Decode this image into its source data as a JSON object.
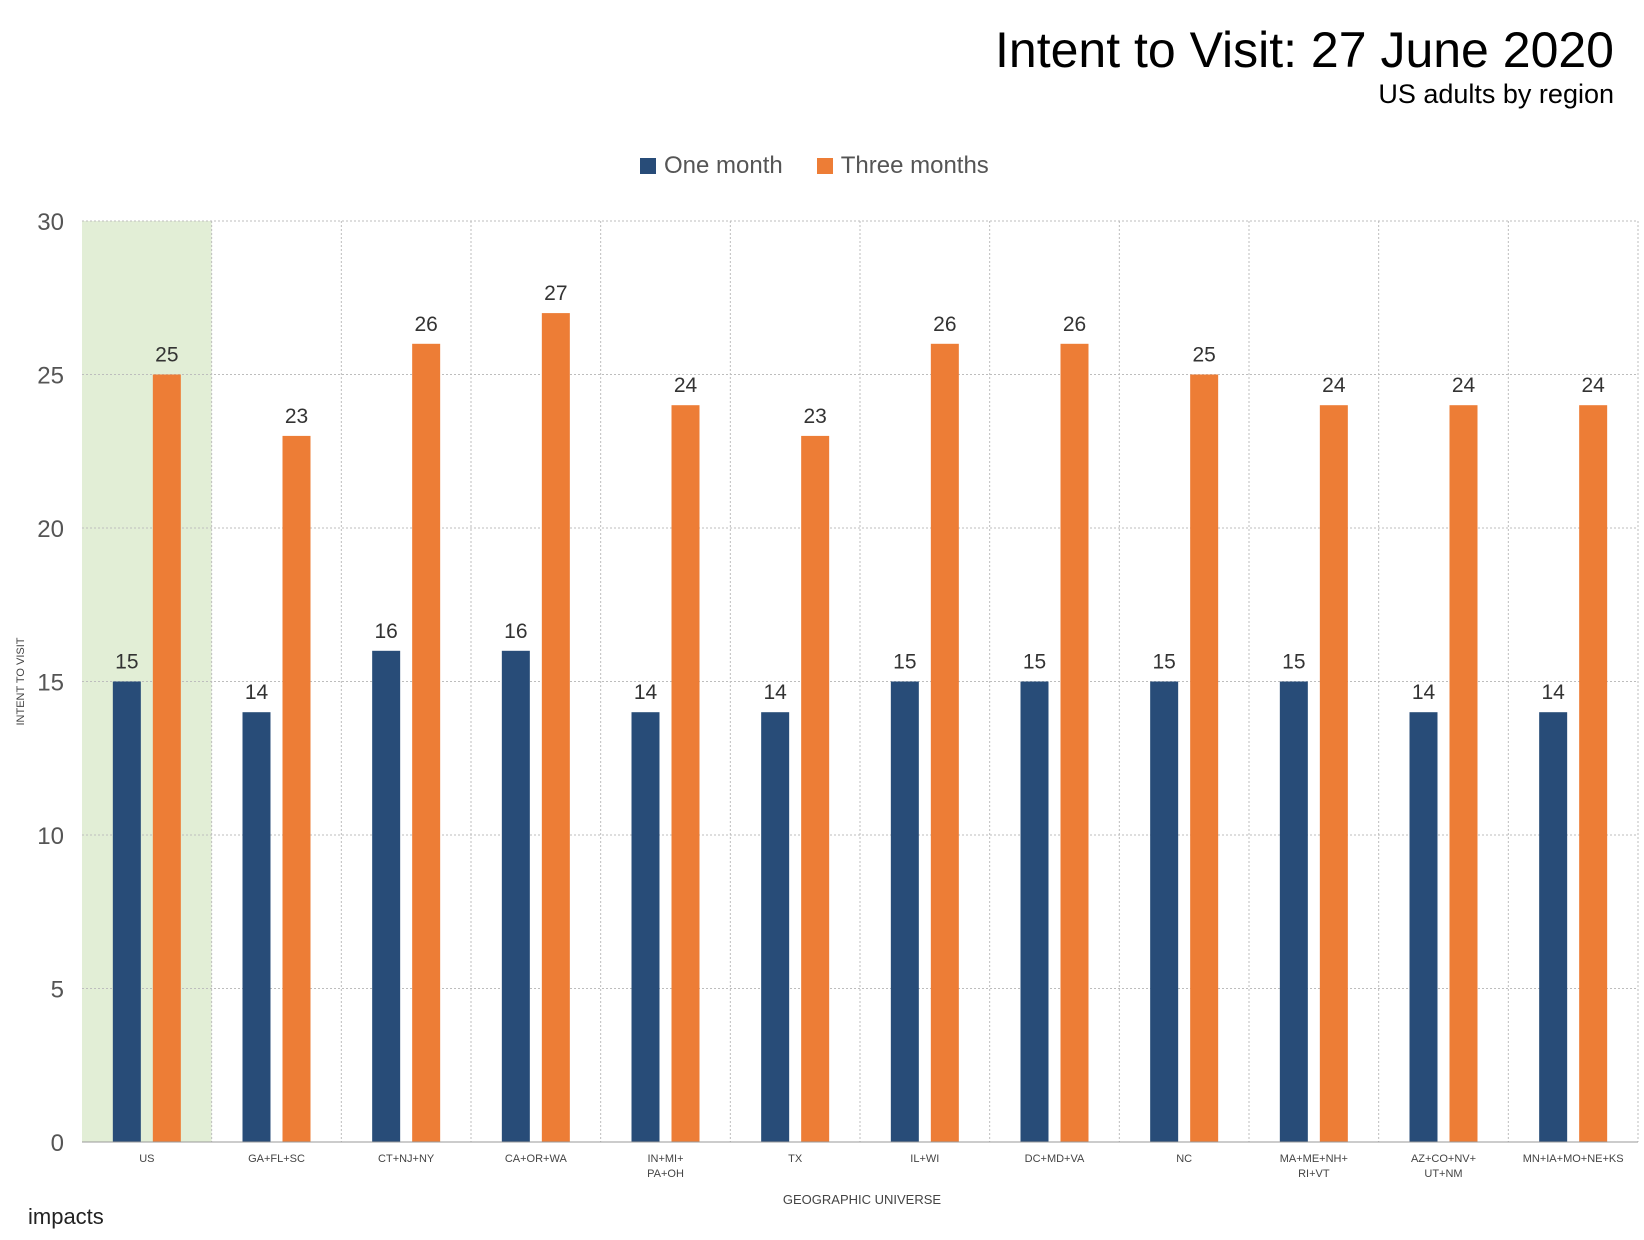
{
  "title": "Intent to Visit: 27 June 2020",
  "subtitle": "US adults by region",
  "logo": "impacts",
  "colors": {
    "one_month": "#284c78",
    "three_months": "#ed7d36",
    "highlight": "#e2eed6"
  },
  "chart_data": {
    "type": "bar",
    "categories": [
      [
        "US"
      ],
      [
        "GA+FL+SC"
      ],
      [
        "CT+NJ+NY"
      ],
      [
        "CA+OR+WA"
      ],
      [
        "IN+MI+",
        "PA+OH"
      ],
      [
        "TX"
      ],
      [
        "IL+WI"
      ],
      [
        "DC+MD+VA"
      ],
      [
        "NC"
      ],
      [
        "MA+ME+NH+",
        "RI+VT"
      ],
      [
        "AZ+CO+NV+",
        "UT+NM"
      ],
      [
        "MN+IA+MO+NE+KS"
      ]
    ],
    "series": [
      {
        "name": "One month",
        "values": [
          15,
          14,
          16,
          16,
          14,
          14,
          15,
          15,
          15,
          15,
          14,
          14
        ]
      },
      {
        "name": "Three months",
        "values": [
          25,
          23,
          26,
          27,
          24,
          23,
          26,
          26,
          25,
          24,
          24,
          24
        ]
      }
    ],
    "xlabel": "GEOGRAPHIC UNIVERSE",
    "ylabel": "INTENT TO VISIT",
    "ylim": [
      0,
      30
    ],
    "yticks": [
      0,
      5,
      10,
      15,
      20,
      25,
      30
    ],
    "highlighted_category": "US",
    "grid": true,
    "legend": "top-center"
  }
}
